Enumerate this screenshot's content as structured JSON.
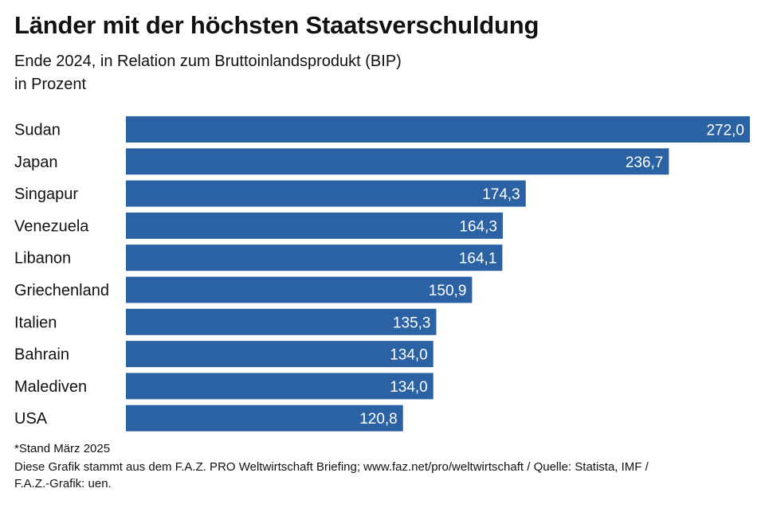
{
  "title": "Länder mit der höchsten Staatsverschuldung",
  "subtitle_line1": "Ende 2024, in Relation zum Bruttoinlandsprodukt (BIP)",
  "subtitle_line2": "in Prozent",
  "colors": {
    "bar": "#2b62a3",
    "bar_label": "#ffffff",
    "category_label": "#111111"
  },
  "chart_data": {
    "type": "bar",
    "orientation": "horizontal",
    "categories": [
      "Sudan",
      "Japan",
      "Singapur",
      "Venezuela",
      "Libanon",
      "Griechenland",
      "Italien",
      "Bahrain",
      "Malediven",
      "USA"
    ],
    "values": [
      272.0,
      236.7,
      174.3,
      164.3,
      164.1,
      150.9,
      135.3,
      134.0,
      134.0,
      120.8
    ],
    "value_labels": [
      "272,0",
      "236,7",
      "174,3",
      "164,3",
      "164,1",
      "150,9",
      "135,3",
      "134,0",
      "134,0",
      "120,8"
    ],
    "xlim": [
      0,
      272
    ],
    "grid": false,
    "legend": "none"
  },
  "footnote": "*Stand März 2025",
  "source_line1": "Diese Grafik stammt aus dem F.A.Z. PRO Weltwirtschaft Briefing; www.faz.net/pro/weltwirtschaft  /  Quelle: Statista, IMF /",
  "source_line2": "F.A.Z.-Grafik: uen."
}
